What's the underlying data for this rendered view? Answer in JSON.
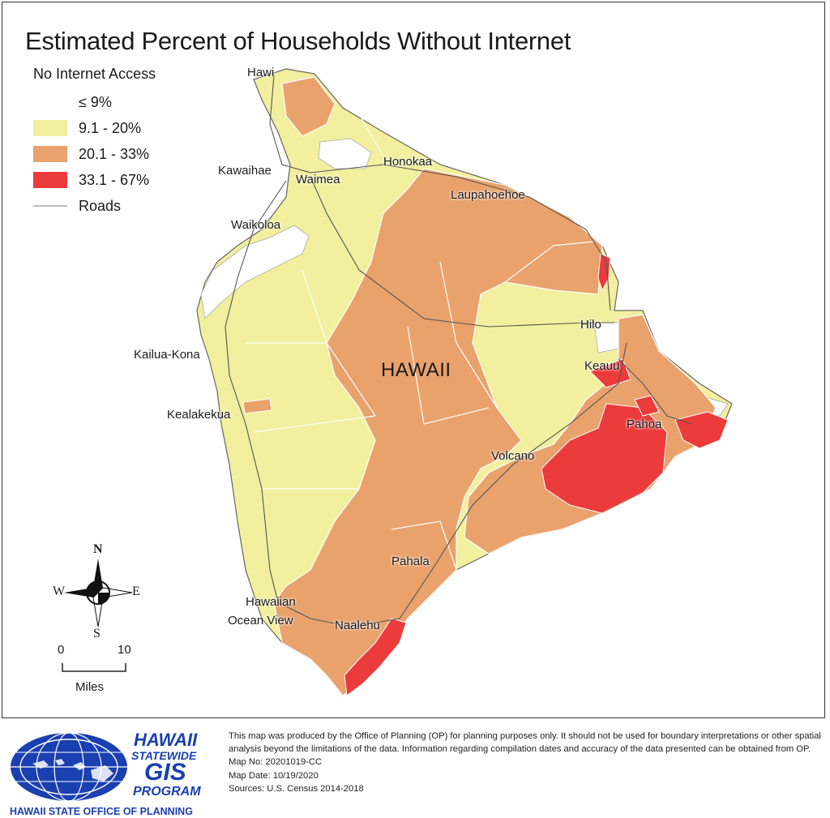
{
  "title": "Estimated Percent of Households Without Internet",
  "legend": {
    "title": "No Internet Access",
    "items": [
      {
        "label": "≤ 9%",
        "color": "#ffffff"
      },
      {
        "label": "9.1 - 20%",
        "color": "#f2ef9e"
      },
      {
        "label": "20.1 - 33%",
        "color": "#e9a26c"
      },
      {
        "label": "33.1 - 67%",
        "color": "#ec3b3b"
      },
      {
        "label": "Roads",
        "color": "#bdbdbd"
      }
    ]
  },
  "island": "HAWAII",
  "places": {
    "hawi": "Hawi",
    "honokaa": "Honokaa",
    "kawaihae": "Kawaihae",
    "waimea": "Waimea",
    "laupahoehoe": "Laupahoehoe",
    "waikoloa": "Waikoloa",
    "kailua_kona": "Kailua-Kona",
    "hilo": "Hilo",
    "keauu": "Keauu",
    "kealakekua": "Kealakekua",
    "pahoa": "Pahoa",
    "volcano": "Volcano",
    "pahala": "Pahala",
    "hawaiian": "Hawaiian",
    "ocean_view": "Ocean View",
    "naalehu": "Naalehu"
  },
  "compass": {
    "n": "N",
    "s": "S",
    "e": "E",
    "w": "W"
  },
  "scale": {
    "min": "0",
    "max": "10",
    "unit": "Miles"
  },
  "logo": {
    "line1": "HAWAII",
    "line2": "STATEWIDE",
    "line3": "GIS",
    "line4": "PROGRAM",
    "office": "HAWAII STATE OFFICE OF PLANNING"
  },
  "notes": {
    "disclaimer": "This map was produced by the Office of Planning (OP) for planning purposes only. It should not be used for boundary interpretations or other spatial analysis beyond the limitations of the data. Information regarding compilation dates and accuracy of the data presented can be obtained from OP.",
    "map_no": "Map No:  20201019-CC",
    "map_date": "Map Date: 10/19/2020",
    "sources": "Sources: U.S. Census 2014-2018"
  },
  "colors": {
    "low": "#ffffff",
    "yellow": "#f2ef9e",
    "orange": "#e9a26c",
    "red": "#ec3b3b",
    "road": "#bdbdbd",
    "logo_blue": "#1a3fb0"
  }
}
